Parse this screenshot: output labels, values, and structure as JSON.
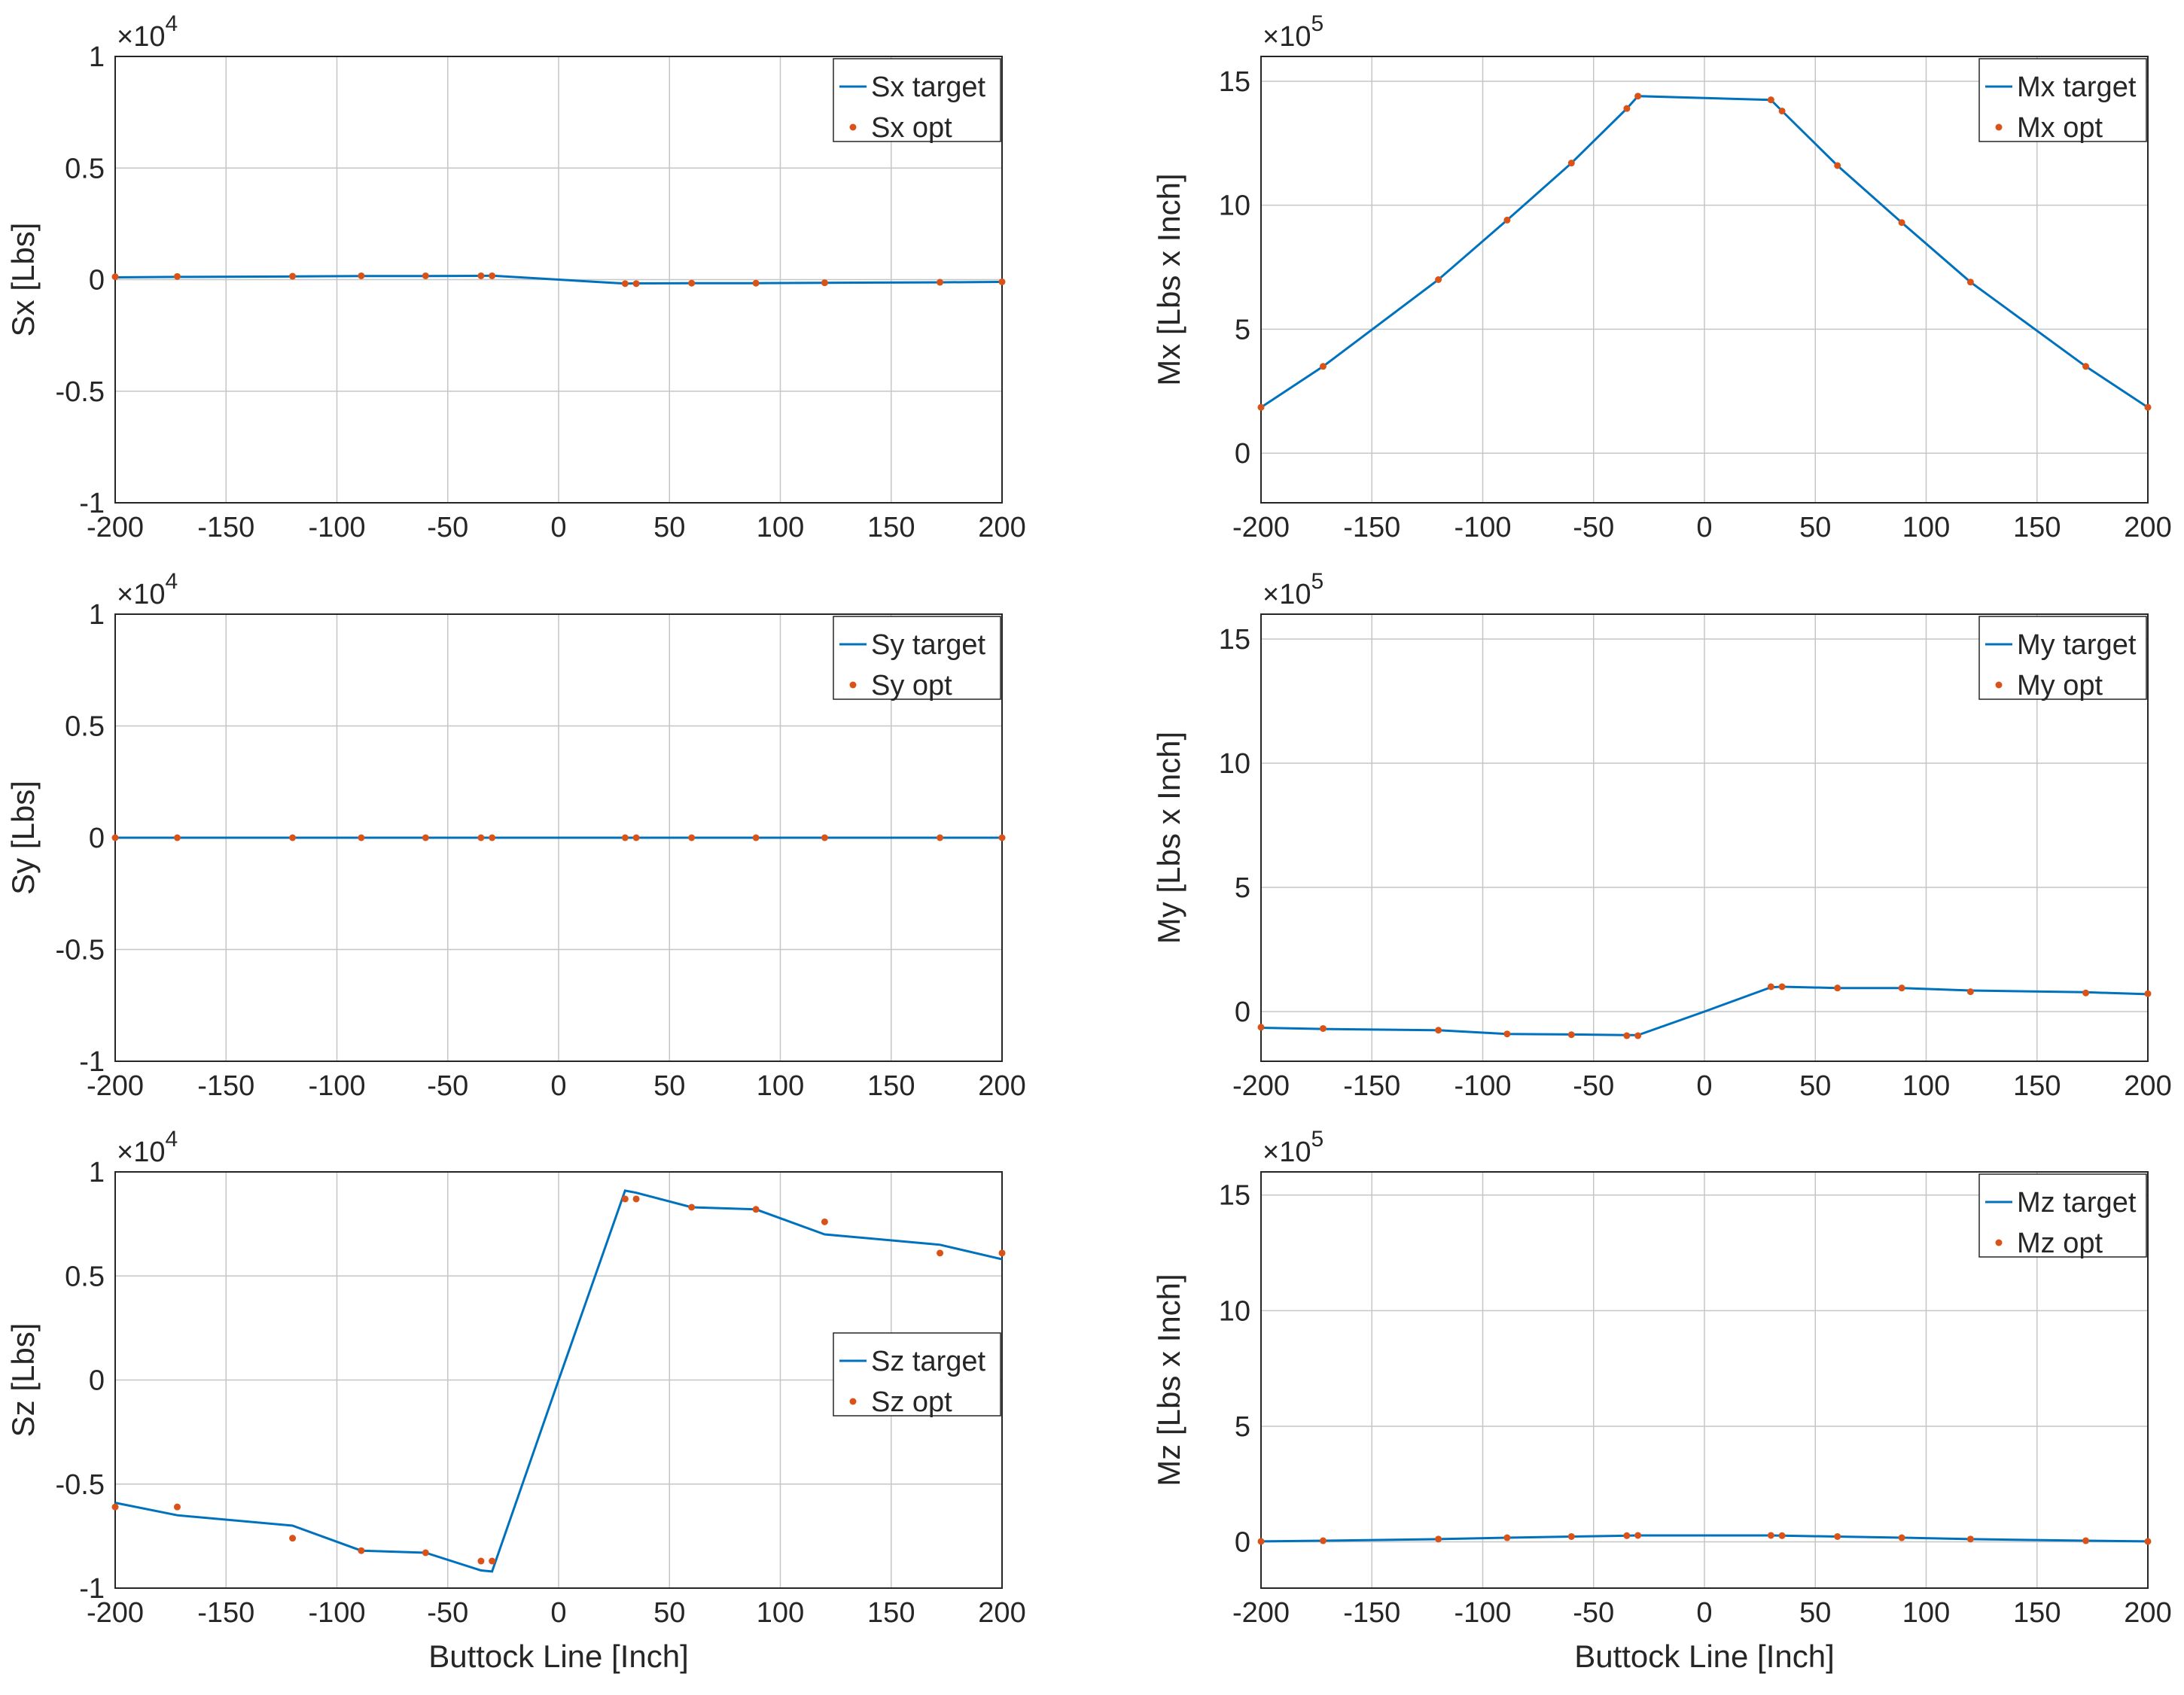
{
  "chart_data": [
    {
      "type": "line",
      "id": "sx",
      "ylabel": "Sx [Lbs]",
      "xlabel": "",
      "exponent_base": "×10",
      "exponent_power": "4",
      "xlim": [
        -200,
        200
      ],
      "ylim": [
        -1,
        1
      ],
      "xticks": [
        -200,
        -150,
        -100,
        -50,
        0,
        50,
        100,
        150,
        200
      ],
      "yticks": [
        -1,
        -0.5,
        0,
        0.5,
        1
      ],
      "ytick_labels": [
        "-1",
        "-0.5",
        "0",
        "0.5",
        "1"
      ],
      "legend_position": "top-right",
      "series": [
        {
          "name": "Sx target",
          "style": "line",
          "color": "#0072BD",
          "x": [
            -200,
            -172,
            -120,
            -89,
            -60,
            -35,
            -30,
            0,
            30,
            35,
            60,
            89,
            120,
            172,
            200
          ],
          "y": [
            0.01,
            0.012,
            0.014,
            0.016,
            0.016,
            0.017,
            0.018,
            0,
            -0.018,
            -0.017,
            -0.016,
            -0.016,
            -0.014,
            -0.012,
            -0.01
          ]
        },
        {
          "name": "Sx opt",
          "style": "points",
          "color": "#D95319",
          "x": [
            -200,
            -172,
            -120,
            -89,
            -60,
            -35,
            -30,
            30,
            35,
            60,
            89,
            120,
            172,
            200
          ],
          "y": [
            0.013,
            0.014,
            0.015,
            0.017,
            0.017,
            0.017,
            0.017,
            -0.018,
            -0.018,
            -0.016,
            -0.016,
            -0.014,
            -0.012,
            -0.01
          ]
        }
      ]
    },
    {
      "type": "line",
      "id": "mx",
      "ylabel": "Mx [Lbs x Inch]",
      "xlabel": "",
      "exponent_base": "×10",
      "exponent_power": "5",
      "xlim": [
        -200,
        200
      ],
      "ylim": [
        -2,
        16
      ],
      "xticks": [
        -200,
        -150,
        -100,
        -50,
        0,
        50,
        100,
        150,
        200
      ],
      "yticks": [
        0,
        5,
        10,
        15
      ],
      "ytick_labels": [
        "0",
        "5",
        "10",
        "15"
      ],
      "legend_position": "top-right",
      "series": [
        {
          "name": "Mx target",
          "style": "line",
          "color": "#0072BD",
          "x": [
            -200,
            -172,
            -120,
            -89,
            -60,
            -35,
            -30,
            30,
            35,
            60,
            89,
            120,
            172,
            200
          ],
          "y": [
            1.85,
            3.5,
            7.0,
            9.4,
            11.7,
            13.9,
            14.4,
            14.25,
            13.8,
            11.6,
            9.3,
            6.9,
            3.5,
            1.85
          ]
        },
        {
          "name": "Mx opt",
          "style": "points",
          "color": "#D95319",
          "x": [
            -200,
            -172,
            -120,
            -89,
            -60,
            -35,
            -30,
            30,
            35,
            60,
            89,
            120,
            172,
            200
          ],
          "y": [
            1.85,
            3.5,
            7.0,
            9.4,
            11.7,
            13.9,
            14.4,
            14.25,
            13.8,
            11.6,
            9.3,
            6.9,
            3.5,
            1.85
          ]
        }
      ]
    },
    {
      "type": "line",
      "id": "sy",
      "ylabel": "Sy [Lbs]",
      "xlabel": "",
      "exponent_base": "×10",
      "exponent_power": "4",
      "xlim": [
        -200,
        200
      ],
      "ylim": [
        -1,
        1
      ],
      "xticks": [
        -200,
        -150,
        -100,
        -50,
        0,
        50,
        100,
        150,
        200
      ],
      "yticks": [
        -1,
        -0.5,
        0,
        0.5,
        1
      ],
      "ytick_labels": [
        "-1",
        "-0.5",
        "0",
        "0.5",
        "1"
      ],
      "legend_position": "top-right",
      "series": [
        {
          "name": "Sy target",
          "style": "line",
          "color": "#0072BD",
          "x": [
            -200,
            -172,
            -120,
            -89,
            -60,
            -35,
            -30,
            30,
            35,
            60,
            89,
            120,
            172,
            200
          ],
          "y": [
            0,
            0,
            0,
            0,
            0,
            0,
            0,
            0,
            0,
            0,
            0,
            0,
            0,
            0
          ]
        },
        {
          "name": "Sy opt",
          "style": "points",
          "color": "#D95319",
          "x": [
            -200,
            -172,
            -120,
            -89,
            -60,
            -35,
            -30,
            30,
            35,
            60,
            89,
            120,
            172,
            200
          ],
          "y": [
            0,
            0,
            0,
            0,
            0,
            0,
            0,
            0,
            0,
            0,
            0,
            0,
            0,
            0
          ]
        }
      ]
    },
    {
      "type": "line",
      "id": "my",
      "ylabel": "My [Lbs x Inch]",
      "xlabel": "",
      "exponent_base": "×10",
      "exponent_power": "5",
      "xlim": [
        -200,
        200
      ],
      "ylim": [
        -2,
        16
      ],
      "xticks": [
        -200,
        -150,
        -100,
        -50,
        0,
        50,
        100,
        150,
        200
      ],
      "yticks": [
        0,
        5,
        10,
        15
      ],
      "ytick_labels": [
        "0",
        "5",
        "10",
        "15"
      ],
      "legend_position": "top-right",
      "series": [
        {
          "name": "My target",
          "style": "line",
          "color": "#0072BD",
          "x": [
            -200,
            -172,
            -120,
            -89,
            -60,
            -35,
            -30,
            0,
            30,
            35,
            60,
            89,
            120,
            172,
            200
          ],
          "y": [
            -0.65,
            -0.7,
            -0.75,
            -0.9,
            -0.92,
            -0.95,
            -0.95,
            0,
            0.98,
            1.0,
            0.95,
            0.95,
            0.85,
            0.78,
            0.7
          ]
        },
        {
          "name": "My opt",
          "style": "points",
          "color": "#D95319",
          "x": [
            -200,
            -172,
            -120,
            -89,
            -60,
            -35,
            -30,
            30,
            35,
            60,
            89,
            120,
            172,
            200
          ],
          "y": [
            -0.63,
            -0.68,
            -0.75,
            -0.9,
            -0.93,
            -0.97,
            -0.97,
            1.0,
            1.0,
            0.95,
            0.95,
            0.8,
            0.75,
            0.72
          ]
        }
      ]
    },
    {
      "type": "line",
      "id": "sz",
      "ylabel": "Sz [Lbs]",
      "xlabel": "Buttock Line [Inch]",
      "exponent_base": "×10",
      "exponent_power": "4",
      "xlim": [
        -200,
        200
      ],
      "ylim": [
        -1,
        1
      ],
      "xticks": [
        -200,
        -150,
        -100,
        -50,
        0,
        50,
        100,
        150,
        200
      ],
      "yticks": [
        -1,
        -0.5,
        0,
        0.5,
        1
      ],
      "ytick_labels": [
        "-1",
        "-0.5",
        "0",
        "0.5",
        "1"
      ],
      "legend_position": "center-right",
      "series": [
        {
          "name": "Sz target",
          "style": "line",
          "color": "#0072BD",
          "x": [
            -200,
            -172,
            -120,
            -89,
            -60,
            -35,
            -30,
            0,
            30,
            35,
            60,
            89,
            120,
            172,
            200
          ],
          "y": [
            -0.59,
            -0.65,
            -0.7,
            -0.82,
            -0.83,
            -0.915,
            -0.92,
            0,
            0.91,
            0.9,
            0.83,
            0.82,
            0.7,
            0.65,
            0.58
          ]
        },
        {
          "name": "Sz opt",
          "style": "points",
          "color": "#D95319",
          "x": [
            -200,
            -172,
            -120,
            -89,
            -60,
            -35,
            -30,
            30,
            35,
            60,
            89,
            120,
            172,
            200
          ],
          "y": [
            -0.61,
            -0.61,
            -0.76,
            -0.82,
            -0.83,
            -0.87,
            -0.87,
            0.87,
            0.87,
            0.83,
            0.82,
            0.76,
            0.61,
            0.61
          ]
        }
      ]
    },
    {
      "type": "line",
      "id": "mz",
      "ylabel": "Mz [Lbs x Inch]",
      "xlabel": "Buttock Line [Inch]",
      "exponent_base": "×10",
      "exponent_power": "5",
      "xlim": [
        -200,
        200
      ],
      "ylim": [
        -2,
        16
      ],
      "xticks": [
        -200,
        -150,
        -100,
        -50,
        0,
        50,
        100,
        150,
        200
      ],
      "yticks": [
        0,
        5,
        10,
        15
      ],
      "ytick_labels": [
        "0",
        "5",
        "10",
        "15"
      ],
      "legend_position": "top-right",
      "series": [
        {
          "name": "Mz target",
          "style": "line",
          "color": "#0072BD",
          "x": [
            -200,
            -172,
            -120,
            -89,
            -60,
            -35,
            -30,
            0,
            30,
            35,
            60,
            89,
            120,
            172,
            200
          ],
          "y": [
            0.02,
            0.05,
            0.12,
            0.18,
            0.23,
            0.27,
            0.28,
            0.28,
            0.28,
            0.27,
            0.23,
            0.18,
            0.12,
            0.05,
            0.02
          ]
        },
        {
          "name": "Mz opt",
          "style": "points",
          "color": "#D95319",
          "x": [
            -200,
            -172,
            -120,
            -89,
            -60,
            -35,
            -30,
            30,
            35,
            60,
            89,
            120,
            172,
            200
          ],
          "y": [
            0.02,
            0.05,
            0.12,
            0.18,
            0.23,
            0.27,
            0.28,
            0.28,
            0.27,
            0.23,
            0.18,
            0.12,
            0.05,
            0.02
          ]
        }
      ]
    }
  ]
}
